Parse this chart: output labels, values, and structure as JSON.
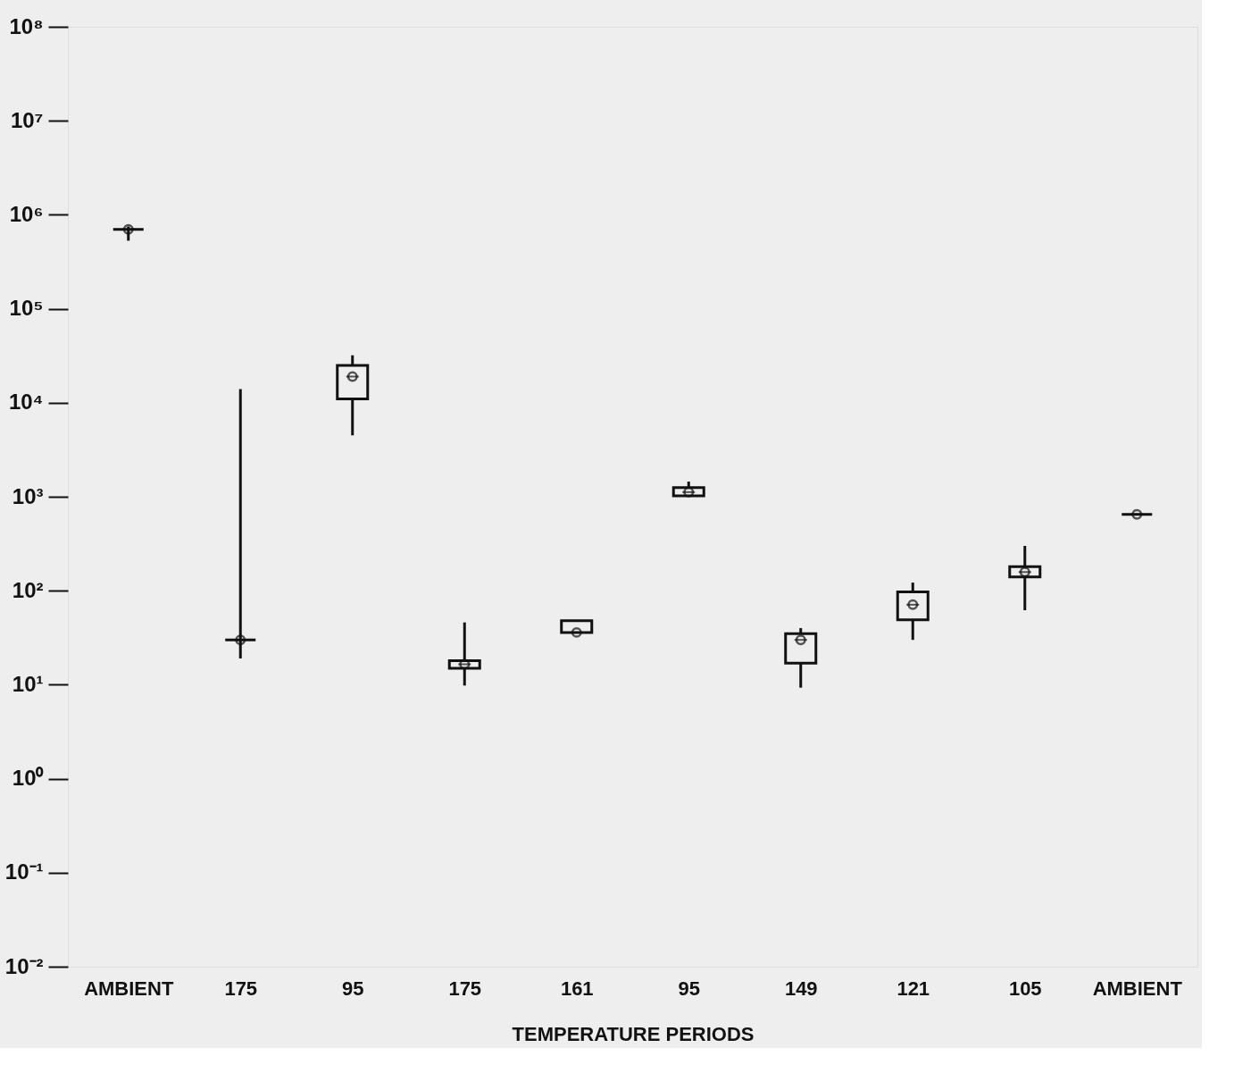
{
  "chart_data": {
    "type": "box",
    "xlabel": "TEMPERATURE PERIODS",
    "categories": [
      "AMBIENT",
      "175",
      "95",
      "175",
      "161",
      "95",
      "149",
      "121",
      "105",
      "AMBIENT"
    ],
    "boxes": [
      {
        "low": 530000,
        "q1": 700000,
        "median": 700000,
        "q3": 700000,
        "high": 750000,
        "mean": 700000
      },
      {
        "low": 19,
        "q1": 30,
        "median": 30,
        "q3": 30,
        "high": 14000,
        "mean": 30
      },
      {
        "low": 4500,
        "q1": 11000,
        "median": 19000,
        "q3": 25000,
        "high": 32000,
        "mean": 19000
      },
      {
        "low": 9.8,
        "q1": 15,
        "median": 16.5,
        "q3": 18,
        "high": 46,
        "mean": 16.5
      },
      {
        "low": 36,
        "q1": 36,
        "median": 36,
        "q3": 48,
        "high": 48,
        "mean": 36
      },
      {
        "low": 1020,
        "q1": 1020,
        "median": 1120,
        "q3": 1250,
        "high": 1450,
        "mean": 1120
      },
      {
        "low": 9.3,
        "q1": 17,
        "median": 30,
        "q3": 35,
        "high": 40,
        "mean": 30
      },
      {
        "low": 30,
        "q1": 49,
        "median": 71,
        "q3": 97,
        "high": 122,
        "mean": 71
      },
      {
        "low": 62,
        "q1": 140,
        "median": 158,
        "q3": 180,
        "high": 300,
        "mean": 158
      },
      {
        "low": 650,
        "q1": 650,
        "median": 650,
        "q3": 650,
        "high": 650,
        "mean": 650
      }
    ],
    "color": "#111111",
    "marker": "circle",
    "log": true,
    "grid": false,
    "ylim": [
      0.01,
      100000000
    ],
    "yticks": [
      {
        "value": 0.01,
        "label": "10⁻²"
      },
      {
        "value": 0.1,
        "label": "10⁻¹"
      },
      {
        "value": 1,
        "label": "10⁰"
      },
      {
        "value": 10,
        "label": "10¹"
      },
      {
        "value": 100,
        "label": "10²"
      },
      {
        "value": 1000,
        "label": "10³"
      },
      {
        "value": 10000,
        "label": "10⁴"
      },
      {
        "value": 100000,
        "label": "10⁵"
      },
      {
        "value": 1000000,
        "label": "10⁶"
      },
      {
        "value": 10000000,
        "label": "10⁷"
      },
      {
        "value": 100000000,
        "label": "10⁸"
      }
    ]
  }
}
